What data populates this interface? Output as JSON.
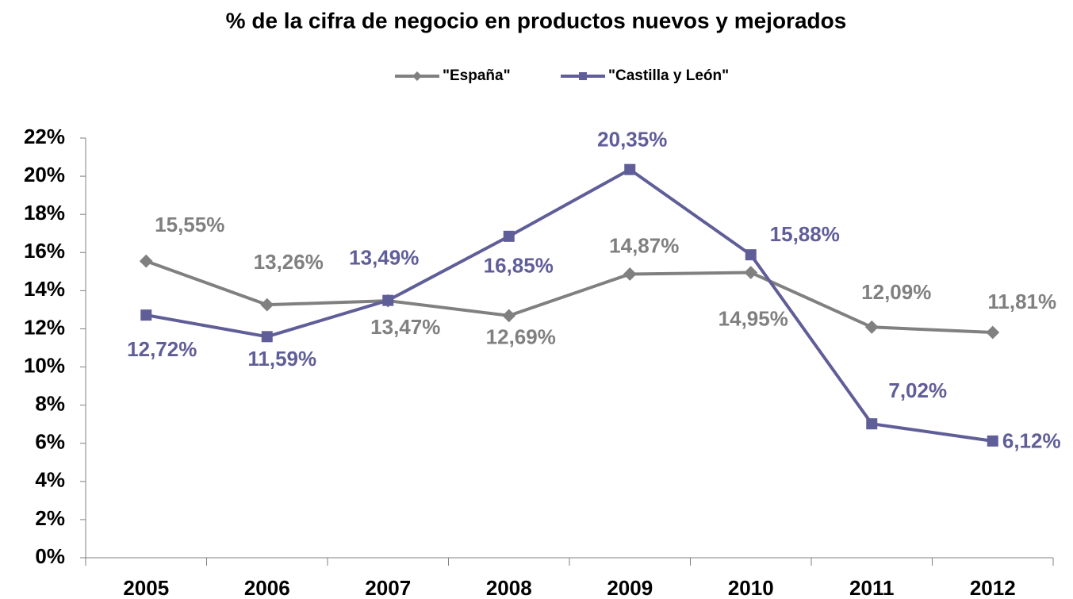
{
  "chart_data": {
    "type": "line",
    "title": "% de la cifra de negocio en productos nuevos y mejorados",
    "categories": [
      "2005",
      "2006",
      "2007",
      "2008",
      "2009",
      "2010",
      "2011",
      "2012"
    ],
    "series": [
      {
        "name": "\"España\"",
        "color": "#808080",
        "marker": "diamond",
        "values": [
          15.55,
          13.26,
          13.47,
          12.69,
          14.87,
          14.95,
          12.09,
          11.81
        ],
        "value_labels": [
          "15,55%",
          "13,26%",
          "13,47%",
          "12,69%",
          "14,87%",
          "14,95%",
          "12,09%",
          "11,81%"
        ]
      },
      {
        "name": "\"Castilla y León\"",
        "color": "#605e98",
        "marker": "square",
        "values": [
          12.72,
          11.59,
          13.49,
          16.85,
          20.35,
          15.88,
          7.02,
          6.12
        ],
        "value_labels": [
          "12,72%",
          "11,59%",
          "13,49%",
          "16,85%",
          "20,35%",
          "15,88%",
          "7,02%",
          "6,12%"
        ]
      }
    ],
    "ylim": [
      0,
      22
    ],
    "yticks": [
      {
        "value": 0,
        "label": "0%"
      },
      {
        "value": 2,
        "label": "2%"
      },
      {
        "value": 4,
        "label": "4%"
      },
      {
        "value": 6,
        "label": "6%"
      },
      {
        "value": 8,
        "label": "8%"
      },
      {
        "value": 10,
        "label": "10%"
      },
      {
        "value": 12,
        "label": "12%"
      },
      {
        "value": 14,
        "label": "14%"
      },
      {
        "value": 16,
        "label": "16%"
      },
      {
        "value": 18,
        "label": "18%"
      },
      {
        "value": 20,
        "label": "20%"
      },
      {
        "value": 22,
        "label": "22%"
      }
    ],
    "grid": false,
    "legend": "top"
  }
}
